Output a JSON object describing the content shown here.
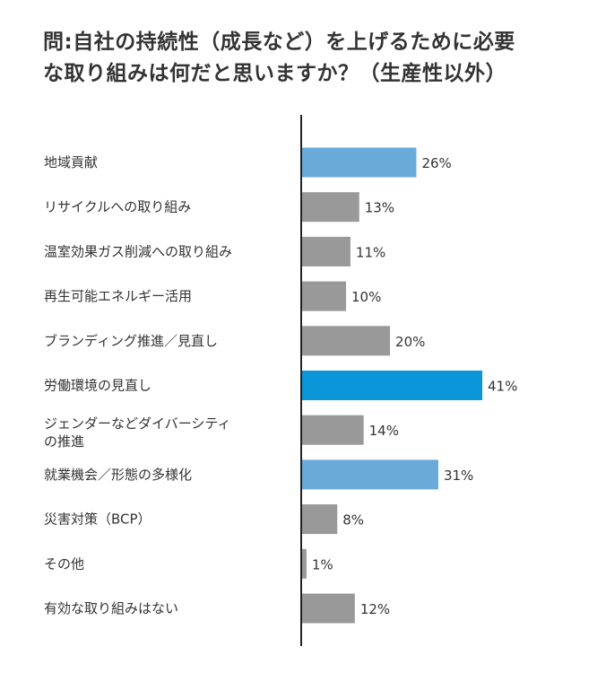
{
  "chart_data": {
    "type": "bar",
    "orientation": "horizontal",
    "title": [
      "問:自社の持続性（成長など）を上げるために必要",
      "な取り組みは何だと思いますか？（生産性以外）"
    ],
    "categories": [
      [
        "地域貢献"
      ],
      [
        "リサイクルへの取り組み"
      ],
      [
        "温室効果ガス削減への取り組み"
      ],
      [
        "再生可能エネルギー活用"
      ],
      [
        "ブランディング推進／見直し"
      ],
      [
        "労働環境の見直し"
      ],
      [
        "ジェンダーなどダイバーシティ",
        "の推進"
      ],
      [
        "就業機会／形態の多様化"
      ],
      [
        "災害対策（BCP）"
      ],
      [
        "その他"
      ],
      [
        "有効な取り組みはない"
      ]
    ],
    "values": [
      26,
      13,
      11,
      10,
      20,
      41,
      14,
      31,
      8,
      1,
      12
    ],
    "value_labels": [
      "26%",
      "13%",
      "11%",
      "10%",
      "20%",
      "41%",
      "14%",
      "31%",
      "8%",
      "1%",
      "12%"
    ],
    "colors": [
      "#6aaad8",
      "#999999",
      "#999999",
      "#999999",
      "#999999",
      "#0a96d8",
      "#999999",
      "#6aaad8",
      "#999999",
      "#999999",
      "#999999"
    ],
    "xlim": [
      0,
      41
    ],
    "unit": "%",
    "grid": false
  }
}
